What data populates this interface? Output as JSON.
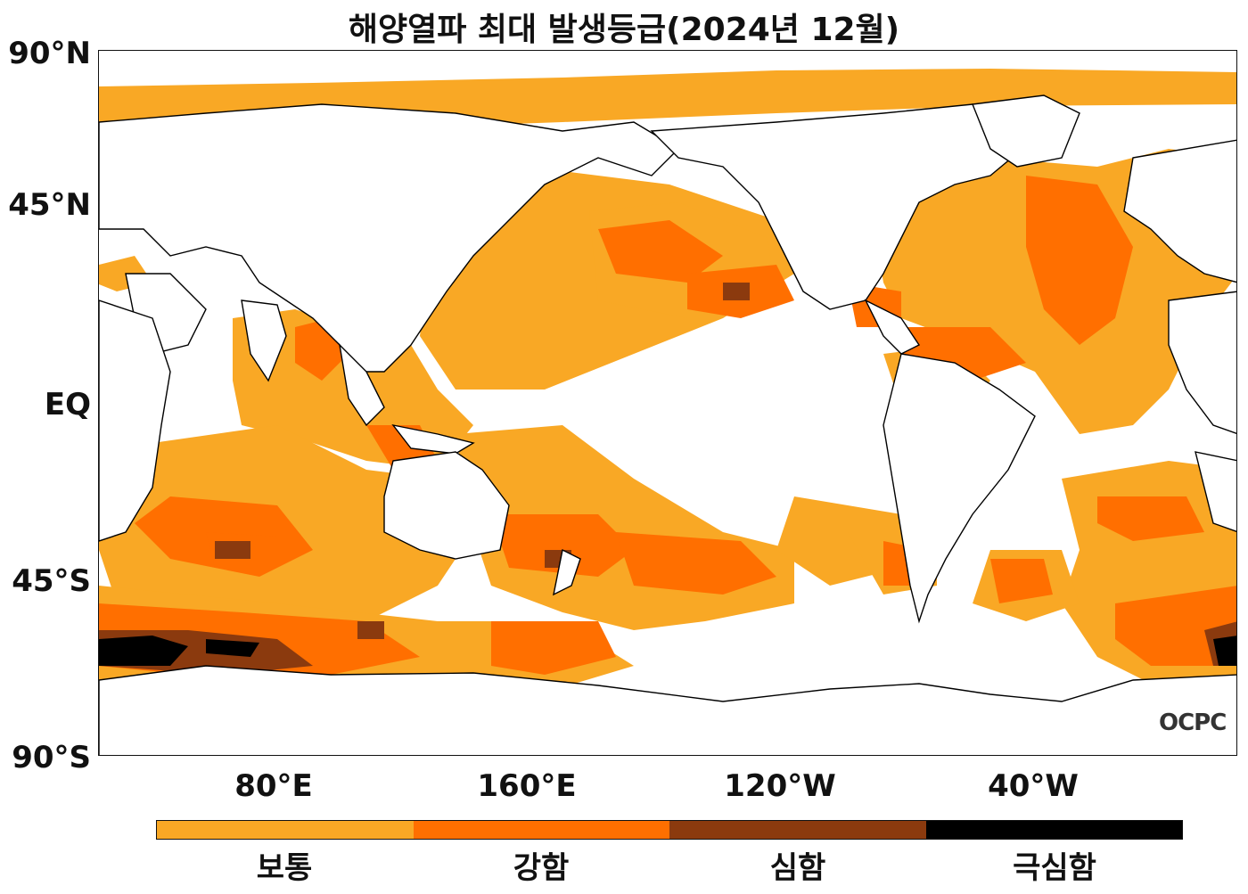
{
  "title": "해양열파 최대 발생등급(2024년 12월)",
  "latitude_labels": [
    "90°N",
    "45°N",
    "EQ",
    "45°S",
    "90°S"
  ],
  "longitude_labels": [
    "80°E",
    "160°E",
    "120°W",
    "40°W"
  ],
  "legend": {
    "categories": [
      {
        "label": "보통",
        "color": "#F9A825"
      },
      {
        "label": "강함",
        "color": "#FF6F00"
      },
      {
        "label": "심함",
        "color": "#8B3A0E"
      },
      {
        "label": "극심함",
        "color": "#000000"
      }
    ]
  },
  "logo": "OCPC",
  "map": {
    "land_color": "#ffffff",
    "coastline_color": "#000000",
    "ocean_no_event_color": "#ffffff"
  }
}
